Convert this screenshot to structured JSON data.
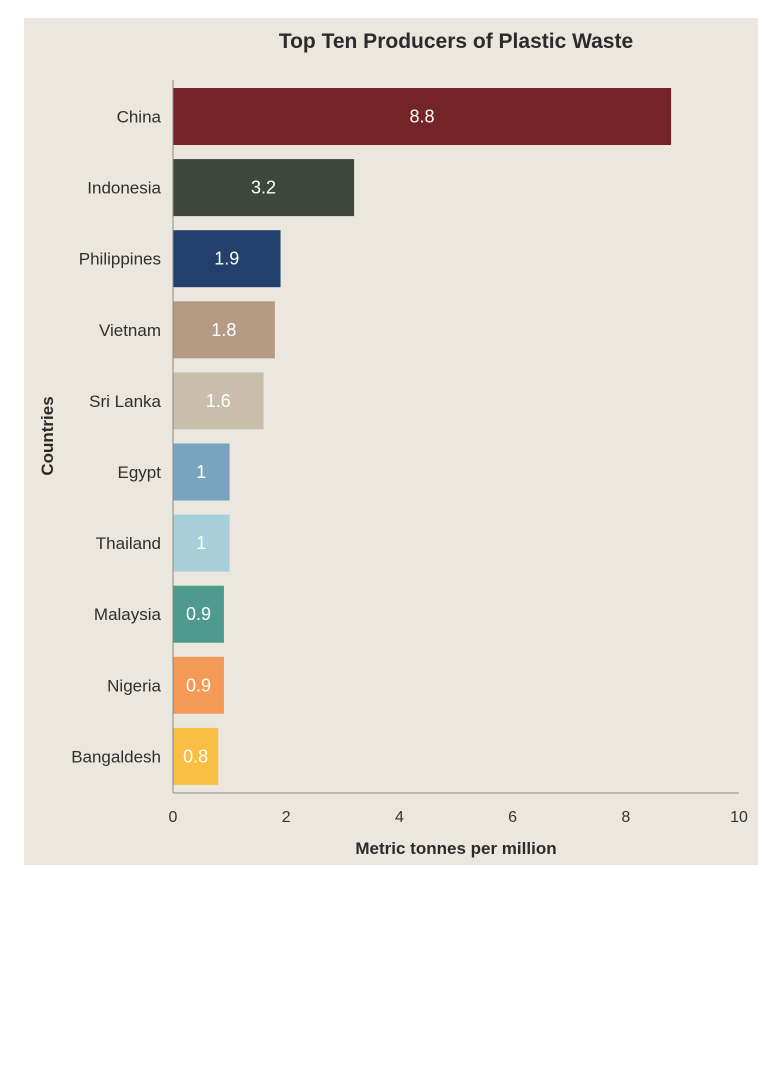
{
  "chart_data": {
    "type": "bar",
    "orientation": "horizontal",
    "title": "Top Ten Producers of Plastic Waste",
    "xlabel": "Metric tonnes per million",
    "ylabel": "Countries",
    "xlim": [
      0,
      10
    ],
    "xticks": [
      "0",
      "2",
      "4",
      "6",
      "8",
      "10"
    ],
    "grid": false,
    "categories": [
      "China",
      "Indonesia",
      "Philippines",
      "Vietnam",
      "Sri Lanka",
      "Egypt",
      "Thailand",
      "Malaysia",
      "Nigeria",
      "Bangaldesh"
    ],
    "values": [
      8.8,
      3.2,
      1.9,
      1.8,
      1.6,
      1,
      1,
      0.9,
      0.9,
      0.8
    ],
    "value_labels": [
      "8.8",
      "3.2",
      "1.9",
      "1.8",
      "1.6",
      "1",
      "1",
      "0.9",
      "0.9",
      "0.8"
    ],
    "colors": [
      "#742326",
      "#3f473c",
      "#22406b",
      "#b69b84",
      "#c8bea9",
      "#78a4bf",
      "#a9cfda",
      "#4e9b8d",
      "#f29a56",
      "#f9bf44"
    ],
    "background_color": "#ebe7de"
  }
}
